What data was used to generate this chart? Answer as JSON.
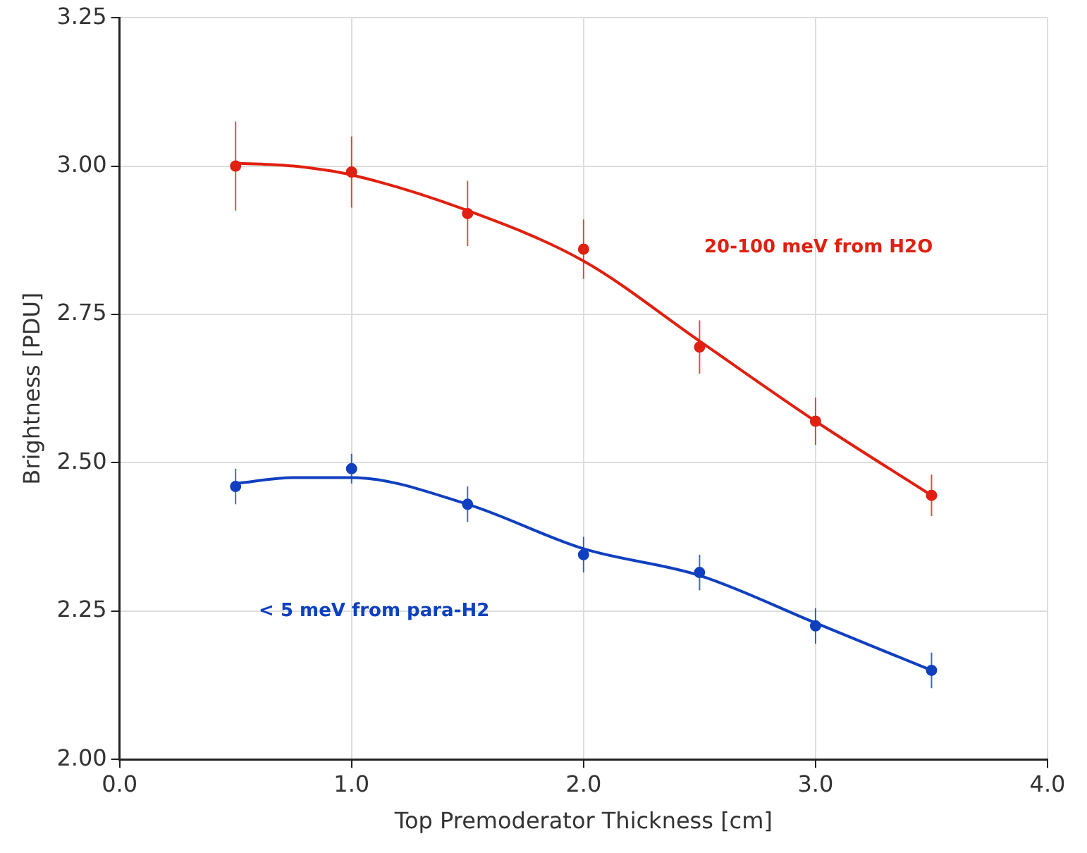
{
  "chart_data": {
    "type": "scatter",
    "xlabel": "Top Premoderator Thickness [cm]",
    "ylabel": "Brightness [PDU]",
    "xlim": [
      0,
      4
    ],
    "xticks": [
      {
        "value": 0,
        "label": "0.0"
      },
      {
        "value": 1,
        "label": "1.0"
      },
      {
        "value": 2,
        "label": "2.0"
      },
      {
        "value": 3,
        "label": "3.0"
      },
      {
        "value": 4,
        "label": "4.0"
      }
    ],
    "ylim": [
      2,
      3.25
    ],
    "yticks": [
      {
        "value": 2,
        "label": "2.00"
      },
      {
        "value": 2.25,
        "label": "2.25"
      },
      {
        "value": 2.5,
        "label": "2.50"
      },
      {
        "value": 2.75,
        "label": "2.75"
      },
      {
        "value": 3,
        "label": "3.00"
      },
      {
        "value": 3.25,
        "label": "3.25"
      }
    ],
    "grid": true,
    "legend": false,
    "marker": "circle",
    "series": [
      {
        "name": "20-100 meV from H2O",
        "color": "#e02010",
        "x": [
          0.5,
          1,
          1.5,
          2,
          2.5,
          3,
          3.5
        ],
        "values": [
          3.0,
          2.99,
          2.92,
          2.86,
          2.695,
          2.57,
          2.445
        ],
        "errors": [
          0.075,
          0.06,
          0.055,
          0.05,
          0.045,
          0.04,
          0.035
        ]
      },
      {
        "name": "< 5 meV from para-H2",
        "color": "#1040c0",
        "x": [
          0.5,
          1,
          1.5,
          2,
          2.5,
          3,
          3.5
        ],
        "values": [
          2.46,
          2.49,
          2.43,
          2.345,
          2.315,
          2.225,
          2.15
        ],
        "errors": [
          0.03,
          0.025,
          0.03,
          0.03,
          0.03,
          0.03,
          0.03
        ]
      },
      {
        "type": "line",
        "color": "#e02010",
        "marker": "none",
        "x": [
          0.5,
          0.75,
          1,
          1.5,
          2,
          2.5,
          3,
          3.5
        ],
        "values": [
          3.005,
          3.0,
          2.985,
          2.925,
          2.84,
          2.705,
          2.57,
          2.445
        ]
      },
      {
        "type": "line",
        "color": "#1040c0",
        "marker": "none",
        "x": [
          0.5,
          0.75,
          1,
          1.5,
          2,
          2.5,
          3,
          3.5
        ],
        "values": [
          2.465,
          2.475,
          2.475,
          2.43,
          2.355,
          2.31,
          2.23,
          2.15
        ]
      }
    ]
  }
}
